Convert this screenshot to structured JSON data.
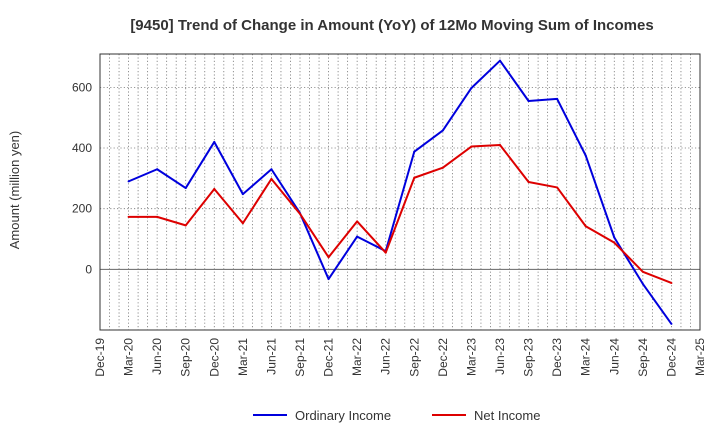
{
  "chart_data": {
    "type": "line",
    "title": "[9450]  Trend of Change in Amount (YoY) of 12Mo Moving Sum of Incomes",
    "xlabel": "",
    "ylabel": "Amount (million yen)",
    "categories": [
      "Dec-19",
      "Mar-20",
      "Jun-20",
      "Sep-20",
      "Dec-20",
      "Mar-21",
      "Jun-21",
      "Sep-21",
      "Dec-21",
      "Mar-22",
      "Jun-22",
      "Sep-22",
      "Dec-22",
      "Mar-23",
      "Jun-23",
      "Sep-23",
      "Dec-23",
      "Mar-24",
      "Jun-24",
      "Sep-24",
      "Dec-24",
      "Mar-25"
    ],
    "yticks": [
      0,
      200,
      400,
      600
    ],
    "ylim": [
      -200,
      710
    ],
    "grid": true,
    "legend": "bottom",
    "series": [
      {
        "name": "Ordinary Income",
        "color": "#0000dd",
        "values": [
          null,
          290,
          330,
          268,
          420,
          248,
          330,
          185,
          -32,
          108,
          60,
          388,
          458,
          598,
          688,
          555,
          562,
          375,
          105,
          -48,
          -180,
          null
        ]
      },
      {
        "name": "Net Income",
        "color": "#dd0000",
        "values": [
          null,
          173,
          173,
          145,
          265,
          152,
          298,
          183,
          40,
          158,
          55,
          302,
          335,
          405,
          410,
          288,
          270,
          142,
          88,
          -8,
          -45,
          null
        ]
      }
    ]
  }
}
